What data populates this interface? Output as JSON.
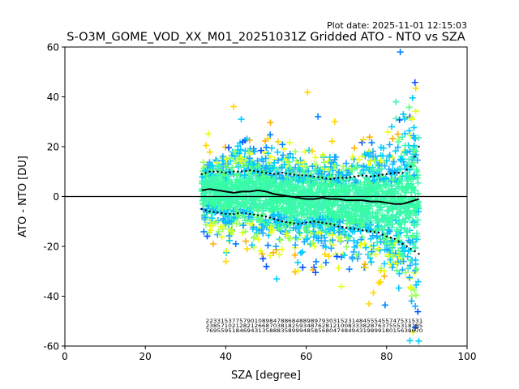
{
  "plot_date": "Plot date: 2025-11-01 12:15:03",
  "chart_data": {
    "type": "scatter",
    "title": "S-O3M_GOME_VOD_XX_M01_20251031Z Gridded ATO - NTO vs SZA",
    "xlabel": "SZA [degree]",
    "ylabel": "ATO - NTO [DU]",
    "xlim": [
      0,
      100
    ],
    "ylim": [
      -60,
      60
    ],
    "xticks": [
      0,
      20,
      40,
      60,
      80,
      100
    ],
    "yticks": [
      -60,
      -40,
      -20,
      0,
      20,
      40,
      60
    ],
    "zero_line": 0,
    "scatter_x_range": [
      34,
      88
    ],
    "scatter_colors": [
      "#40f5b4",
      "#33ffa0",
      "#1aaaff",
      "#00ccff",
      "#5bff7a",
      "#9cff5a",
      "#e8ff1a",
      "#ffd700",
      "#ffb000",
      "#0050ff",
      "#0080ff"
    ],
    "median": {
      "x": [
        34,
        36,
        38,
        40,
        42,
        44,
        46,
        48,
        50,
        52,
        54,
        56,
        58,
        60,
        62,
        64,
        66,
        68,
        70,
        72,
        74,
        76,
        78,
        80,
        82,
        84,
        86,
        88
      ],
      "y": [
        2.5,
        3,
        2.5,
        2,
        1.5,
        2,
        2,
        2.5,
        2,
        1,
        0.5,
        0,
        -0.5,
        -1,
        -1,
        -0.5,
        -1,
        -1,
        -1.5,
        -1.5,
        -1.5,
        -2,
        -2,
        -2.5,
        -3,
        -3,
        -2,
        -1
      ]
    },
    "upper_bound": {
      "x": [
        34,
        36,
        38,
        40,
        42,
        44,
        46,
        48,
        50,
        52,
        54,
        56,
        58,
        60,
        62,
        64,
        66,
        68,
        70,
        72,
        74,
        76,
        78,
        80,
        82,
        84,
        86,
        88
      ],
      "y": [
        9,
        10,
        10,
        9.5,
        10,
        10,
        10.5,
        10,
        9.5,
        9,
        9.5,
        9,
        8.5,
        8.5,
        8,
        7.5,
        7,
        7.5,
        7.5,
        8,
        8.5,
        8,
        8.5,
        9,
        9.5,
        9.5,
        12,
        20
      ]
    },
    "lower_bound": {
      "x": [
        34,
        36,
        38,
        40,
        42,
        44,
        46,
        48,
        50,
        52,
        54,
        56,
        58,
        60,
        62,
        64,
        66,
        68,
        70,
        72,
        74,
        76,
        78,
        80,
        82,
        84,
        86,
        88
      ],
      "y": [
        -5,
        -6,
        -6.5,
        -7,
        -7,
        -6.5,
        -7,
        -7.5,
        -8,
        -9,
        -10,
        -10.5,
        -11,
        -10.5,
        -10,
        -10.5,
        -11,
        -12,
        -12.5,
        -13,
        -13.5,
        -14,
        -14.5,
        -16,
        -17,
        -19,
        -21,
        -23
      ]
    },
    "count_annotations": {
      "x_start": 35,
      "x_end": 89,
      "y_levels": [
        -50.5,
        -52.5,
        -54.5
      ],
      "text_rows": [
        "2233153775790108984788684889897930315231484555455747531531",
        "2385710212821266870381825934876281210083338287637555318185",
        "7695595184694313588835899948585680474849431989918015638670"
      ]
    }
  }
}
